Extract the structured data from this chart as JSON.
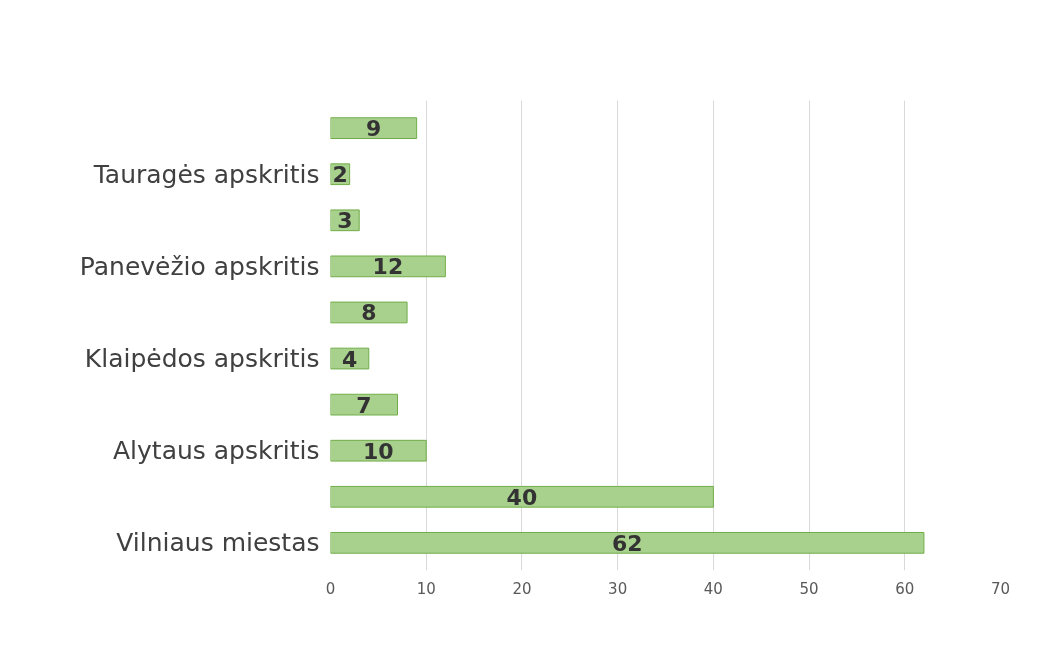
{
  "chart_data": {
    "type": "bar",
    "orientation": "horizontal",
    "categories": [
      null,
      "Tauragės apskritis",
      null,
      "Panevėžio apskritis",
      null,
      "Klaipėdos apskritis",
      null,
      "Alytaus apskritis",
      null,
      "Vilniaus miestas"
    ],
    "values": [
      9,
      2,
      3,
      12,
      8,
      4,
      7,
      10,
      40,
      62
    ],
    "color": "#a9d18e",
    "xlim": [
      0,
      70
    ],
    "xticks": [
      0,
      10,
      20,
      30,
      40,
      50,
      60,
      70
    ],
    "grid": "x",
    "data_labels": true
  }
}
